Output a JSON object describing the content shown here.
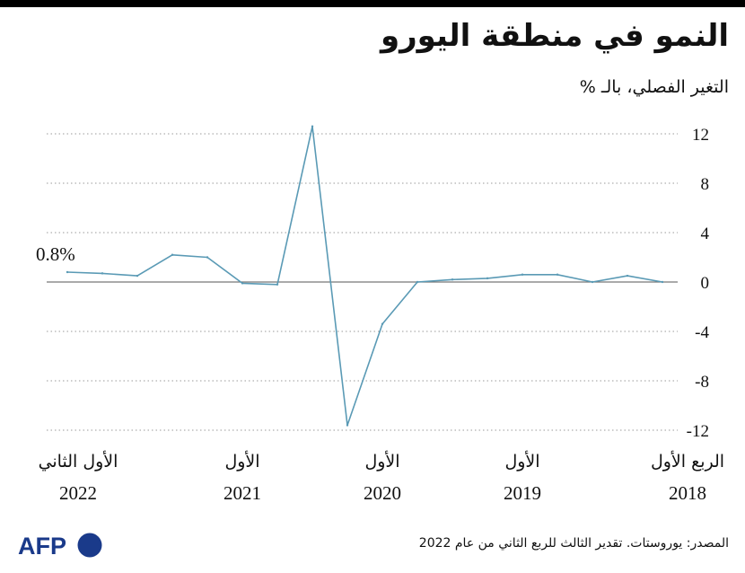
{
  "header": {
    "title": "النمو في منطقة اليورو",
    "subtitle": "التغير الفصلي، بالـ %"
  },
  "footer": {
    "source": "المصدر: يوروستات. تقدير الثالث للربع الثاني من عام 2022",
    "logo_text": "AFP"
  },
  "colors": {
    "line": "#5a9ab5",
    "grid": "#9a9a9a",
    "zero_line": "#777777",
    "text": "#111111"
  },
  "chart_data": {
    "type": "line",
    "title": "النمو في منطقة اليورو",
    "ylabel": "التغير الفصلي، بالـ %",
    "ylim": [
      -12,
      13
    ],
    "yticks": [
      12,
      8,
      4,
      0,
      -4,
      -8,
      -12
    ],
    "ytick_labels": [
      "12",
      "8",
      "4",
      "0",
      "-4",
      "-8",
      "-12"
    ],
    "grid": "horizontal dotted",
    "x_direction": "right-to-left",
    "x": [
      "2018-Q1",
      "2018-Q2",
      "2018-Q3",
      "2018-Q4",
      "2019-Q1",
      "2019-Q2",
      "2019-Q3",
      "2019-Q4",
      "2020-Q1",
      "2020-Q2",
      "2020-Q3",
      "2020-Q4",
      "2021-Q1",
      "2021-Q2",
      "2021-Q3",
      "2021-Q4",
      "2022-Q1",
      "2022-Q2"
    ],
    "series": [
      {
        "values": [
          0.0,
          0.5,
          0.0,
          0.6,
          0.6,
          0.3,
          0.2,
          0.0,
          -3.4,
          -11.6,
          12.6,
          -0.2,
          -0.1,
          2.0,
          2.2,
          0.5,
          0.7,
          0.8
        ]
      }
    ],
    "x_labels": [
      {
        "index": 0,
        "label": "الربع الأول",
        "year": "2018"
      },
      {
        "index": 4,
        "label": "الأول",
        "year": "2019"
      },
      {
        "index": 8,
        "label": "الأول",
        "year": "2020"
      },
      {
        "index": 12,
        "label": "الأول",
        "year": "2021"
      },
      {
        "index": 17,
        "label": "الأول الثاني",
        "year": "2022"
      }
    ],
    "annotations": [
      {
        "index": 17,
        "text": "0.8%"
      }
    ]
  }
}
